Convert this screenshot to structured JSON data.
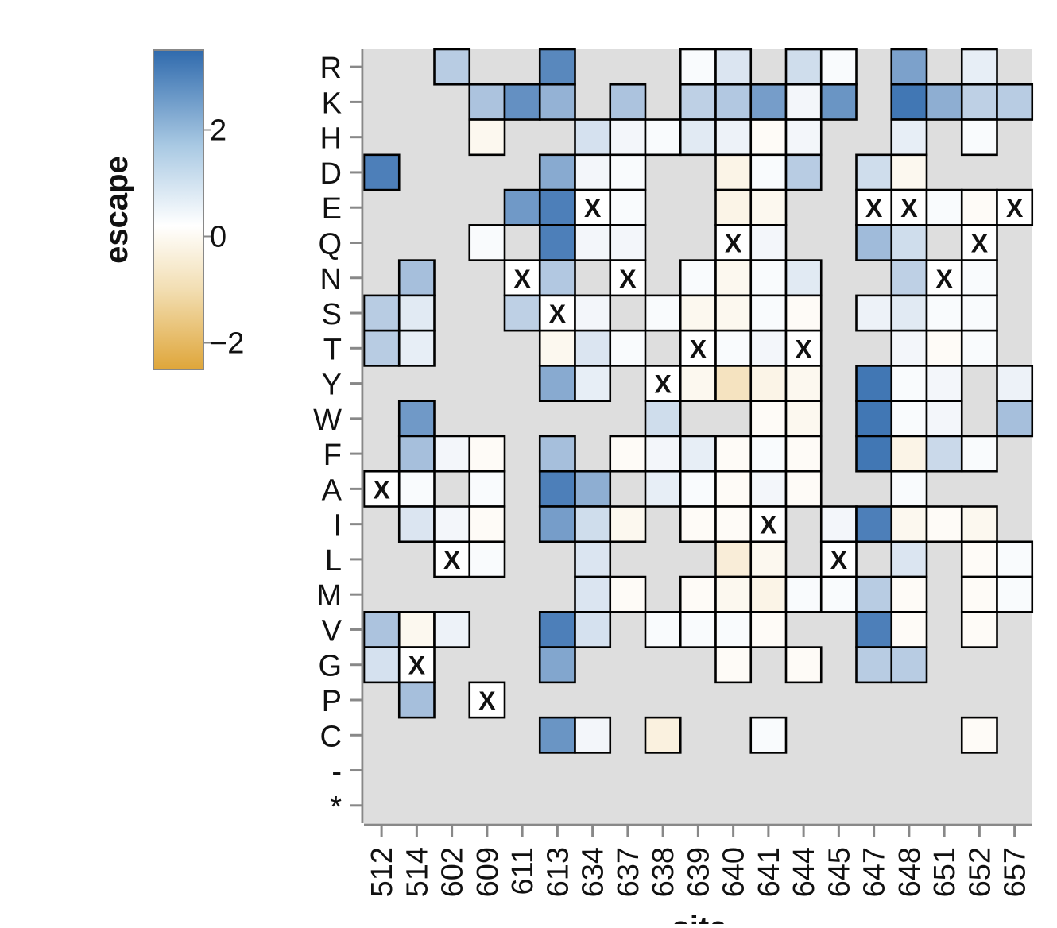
{
  "chart_data": {
    "type": "heatmap",
    "xlabel": "site",
    "ylabel": "",
    "x": [
      "512",
      "514",
      "602",
      "609",
      "611",
      "613",
      "634",
      "637",
      "638",
      "639",
      "640",
      "641",
      "644",
      "645",
      "647",
      "648",
      "651",
      "652",
      "657"
    ],
    "y": [
      "R",
      "K",
      "H",
      "D",
      "E",
      "Q",
      "N",
      "S",
      "T",
      "Y",
      "W",
      "F",
      "A",
      "I",
      "L",
      "M",
      "V",
      "G",
      "P",
      "C",
      "-",
      "*"
    ],
    "legend": {
      "title": "escape",
      "ticks": [
        2,
        0,
        -2
      ],
      "tick_labels": [
        "2",
        "0",
        "−2"
      ],
      "range": [
        -2.5,
        3.5
      ],
      "colors": {
        "low": "#dfa63a",
        "mid": "#ffffff",
        "high": "#2f6aad"
      },
      "placement": "left"
    },
    "background_color": "#dedede",
    "wildtype_marker": "X",
    "cells": [
      [
        "602",
        "R",
        1.2
      ],
      [
        "613",
        "R",
        2.8
      ],
      [
        "639",
        "R",
        0.1
      ],
      [
        "640",
        "R",
        0.6
      ],
      [
        "644",
        "R",
        0.8
      ],
      [
        "645",
        "R",
        0.1
      ],
      [
        "648",
        "R",
        2.2
      ],
      [
        "652",
        "R",
        0.4
      ],
      [
        "609",
        "K",
        1.4
      ],
      [
        "611",
        "K",
        2.6
      ],
      [
        "613",
        "K",
        1.8
      ],
      [
        "637",
        "K",
        1.4
      ],
      [
        "639",
        "K",
        1.1
      ],
      [
        "640",
        "K",
        1.3
      ],
      [
        "641",
        "K",
        2.3
      ],
      [
        "644",
        "K",
        0.2
      ],
      [
        "645",
        "K",
        2.5
      ],
      [
        "648",
        "K",
        3.2
      ],
      [
        "651",
        "K",
        1.9
      ],
      [
        "652",
        "K",
        1.1
      ],
      [
        "657",
        "K",
        1.2
      ],
      [
        "609",
        "H",
        -0.2
      ],
      [
        "634",
        "H",
        0.7
      ],
      [
        "637",
        "H",
        0.2
      ],
      [
        "638",
        "H",
        0.1
      ],
      [
        "639",
        "H",
        0.5
      ],
      [
        "640",
        "H",
        0.3
      ],
      [
        "641",
        "H",
        -0.1
      ],
      [
        "644",
        "H",
        0.2
      ],
      [
        "648",
        "H",
        0.4
      ],
      [
        "652",
        "H",
        0.1
      ],
      [
        "512",
        "D",
        3.0
      ],
      [
        "613",
        "D",
        2.0
      ],
      [
        "634",
        "D",
        0.2
      ],
      [
        "637",
        "D",
        0.1
      ],
      [
        "640",
        "D",
        -0.3
      ],
      [
        "641",
        "D",
        0.1
      ],
      [
        "644",
        "D",
        1.2
      ],
      [
        "647",
        "D",
        0.8
      ],
      [
        "648",
        "D",
        -0.2
      ],
      [
        "611",
        "E",
        2.4
      ],
      [
        "613",
        "E",
        3.0
      ],
      [
        "634",
        "E",
        0,
        "wt"
      ],
      [
        "637",
        "E",
        0.1
      ],
      [
        "640",
        "E",
        -0.3
      ],
      [
        "641",
        "E",
        -0.2
      ],
      [
        "647",
        "E",
        0,
        "wt"
      ],
      [
        "648",
        "E",
        0,
        "wt"
      ],
      [
        "651",
        "E",
        0.1
      ],
      [
        "652",
        "E",
        -0.1
      ],
      [
        "657",
        "E",
        0,
        "wt"
      ],
      [
        "609",
        "Q",
        0.1
      ],
      [
        "613",
        "Q",
        3.0
      ],
      [
        "634",
        "Q",
        0.2
      ],
      [
        "637",
        "Q",
        0.2
      ],
      [
        "640",
        "Q",
        0,
        "wt"
      ],
      [
        "641",
        "Q",
        0.2
      ],
      [
        "647",
        "Q",
        1.6
      ],
      [
        "648",
        "Q",
        0.8
      ],
      [
        "652",
        "Q",
        0,
        "wt"
      ],
      [
        "514",
        "N",
        1.5
      ],
      [
        "611",
        "N",
        0,
        "wt"
      ],
      [
        "613",
        "N",
        1.3
      ],
      [
        "637",
        "N",
        0,
        "wt"
      ],
      [
        "639",
        "N",
        0.1
      ],
      [
        "640",
        "N",
        -0.2
      ],
      [
        "641",
        "N",
        0.1
      ],
      [
        "644",
        "N",
        0.5
      ],
      [
        "648",
        "N",
        1.1
      ],
      [
        "651",
        "N",
        0,
        "wt"
      ],
      [
        "652",
        "N",
        0.1
      ],
      [
        "512",
        "S",
        1.2
      ],
      [
        "514",
        "S",
        0.5
      ],
      [
        "611",
        "S",
        1.1
      ],
      [
        "613",
        "S",
        0,
        "wt"
      ],
      [
        "634",
        "S",
        0.2
      ],
      [
        "638",
        "S",
        0.1
      ],
      [
        "639",
        "S",
        -0.2
      ],
      [
        "640",
        "S",
        -0.2
      ],
      [
        "641",
        "S",
        0.1
      ],
      [
        "644",
        "S",
        -0.1
      ],
      [
        "647",
        "S",
        0.3
      ],
      [
        "648",
        "S",
        0.5
      ],
      [
        "651",
        "S",
        0.1
      ],
      [
        "652",
        "S",
        0.1
      ],
      [
        "512",
        "T",
        1.2
      ],
      [
        "514",
        "T",
        0.4
      ],
      [
        "613",
        "T",
        -0.2
      ],
      [
        "634",
        "T",
        0.6
      ],
      [
        "637",
        "T",
        0.1
      ],
      [
        "639",
        "T",
        0,
        "wt"
      ],
      [
        "640",
        "T",
        0.1
      ],
      [
        "641",
        "T",
        0.2
      ],
      [
        "644",
        "T",
        0,
        "wt"
      ],
      [
        "648",
        "T",
        0.2
      ],
      [
        "651",
        "T",
        -0.1
      ],
      [
        "652",
        "T",
        0.1
      ],
      [
        "613",
        "Y",
        2.0
      ],
      [
        "634",
        "Y",
        0.4
      ],
      [
        "638",
        "Y",
        0,
        "wt"
      ],
      [
        "639",
        "Y",
        -0.2
      ],
      [
        "640",
        "Y",
        -0.8
      ],
      [
        "641",
        "Y",
        -0.3
      ],
      [
        "644",
        "Y",
        -0.2
      ],
      [
        "647",
        "Y",
        3.2
      ],
      [
        "648",
        "Y",
        0.1
      ],
      [
        "651",
        "Y",
        0.2
      ],
      [
        "657",
        "Y",
        0.3
      ],
      [
        "514",
        "W",
        2.4
      ],
      [
        "638",
        "W",
        0.8
      ],
      [
        "641",
        "W",
        -0.1
      ],
      [
        "644",
        "W",
        -0.2
      ],
      [
        "647",
        "W",
        3.2
      ],
      [
        "648",
        "W",
        0.1
      ],
      [
        "651",
        "W",
        0.2
      ],
      [
        "657",
        "W",
        1.5
      ],
      [
        "514",
        "F",
        1.5
      ],
      [
        "602",
        "F",
        0.2
      ],
      [
        "609",
        "F",
        -0.1
      ],
      [
        "613",
        "F",
        1.5
      ],
      [
        "637",
        "F",
        -0.1
      ],
      [
        "638",
        "F",
        0.2
      ],
      [
        "639",
        "F",
        0.4
      ],
      [
        "640",
        "F",
        -0.1
      ],
      [
        "641",
        "F",
        0.1
      ],
      [
        "644",
        "F",
        -0.1
      ],
      [
        "647",
        "F",
        3.2
      ],
      [
        "648",
        "F",
        -0.3
      ],
      [
        "651",
        "F",
        0.9
      ],
      [
        "652",
        "F",
        0.1
      ],
      [
        "512",
        "A",
        0,
        "wt"
      ],
      [
        "514",
        "A",
        0.1
      ],
      [
        "609",
        "A",
        0.1
      ],
      [
        "613",
        "A",
        3.0
      ],
      [
        "634",
        "A",
        1.9
      ],
      [
        "638",
        "A",
        0.4
      ],
      [
        "639",
        "A",
        0.1
      ],
      [
        "640",
        "A",
        -0.1
      ],
      [
        "641",
        "A",
        0.2
      ],
      [
        "644",
        "A",
        -0.1
      ],
      [
        "648",
        "A",
        0.1
      ],
      [
        "514",
        "I",
        0.6
      ],
      [
        "602",
        "I",
        0.2
      ],
      [
        "609",
        "I",
        -0.1
      ],
      [
        "613",
        "I",
        2.3
      ],
      [
        "634",
        "I",
        0.8
      ],
      [
        "637",
        "I",
        -0.2
      ],
      [
        "639",
        "I",
        -0.1
      ],
      [
        "640",
        "I",
        -0.1
      ],
      [
        "641",
        "I",
        0,
        "wt"
      ],
      [
        "645",
        "I",
        0.2
      ],
      [
        "647",
        "I",
        3.0
      ],
      [
        "648",
        "I",
        -0.2
      ],
      [
        "651",
        "I",
        -0.1
      ],
      [
        "652",
        "I",
        -0.2
      ],
      [
        "602",
        "L",
        0,
        "wt"
      ],
      [
        "609",
        "L",
        0.1
      ],
      [
        "634",
        "L",
        0.6
      ],
      [
        "640",
        "L",
        -0.5
      ],
      [
        "641",
        "L",
        -0.2
      ],
      [
        "645",
        "L",
        0,
        "wt"
      ],
      [
        "648",
        "L",
        0.6
      ],
      [
        "652",
        "L",
        -0.1
      ],
      [
        "657",
        "L",
        0.1
      ],
      [
        "634",
        "M",
        0.6
      ],
      [
        "637",
        "M",
        -0.1
      ],
      [
        "639",
        "M",
        -0.1
      ],
      [
        "640",
        "M",
        -0.2
      ],
      [
        "641",
        "M",
        -0.3
      ],
      [
        "644",
        "M",
        0.1
      ],
      [
        "645",
        "M",
        0.1
      ],
      [
        "647",
        "M",
        1.2
      ],
      [
        "648",
        "M",
        -0.1
      ],
      [
        "652",
        "M",
        -0.1
      ],
      [
        "657",
        "M",
        0.1
      ],
      [
        "512",
        "V",
        1.4
      ],
      [
        "514",
        "V",
        -0.2
      ],
      [
        "602",
        "V",
        0.3
      ],
      [
        "613",
        "V",
        3.0
      ],
      [
        "634",
        "V",
        0.7
      ],
      [
        "638",
        "V",
        0.1
      ],
      [
        "639",
        "V",
        0.1
      ],
      [
        "640",
        "V",
        0.1
      ],
      [
        "641",
        "V",
        -0.1
      ],
      [
        "647",
        "V",
        3.0
      ],
      [
        "648",
        "V",
        -0.1
      ],
      [
        "652",
        "V",
        -0.1
      ],
      [
        "512",
        "G",
        0.7
      ],
      [
        "514",
        "G",
        0,
        "wt"
      ],
      [
        "613",
        "G",
        2.1
      ],
      [
        "640",
        "G",
        -0.1
      ],
      [
        "644",
        "G",
        -0.1
      ],
      [
        "647",
        "G",
        1.2
      ],
      [
        "648",
        "G",
        1.2
      ],
      [
        "514",
        "P",
        1.5
      ],
      [
        "609",
        "P",
        0,
        "wt"
      ],
      [
        "613",
        "C",
        2.5
      ],
      [
        "634",
        "C",
        0.2
      ],
      [
        "638",
        "C",
        -0.4
      ],
      [
        "641",
        "C",
        0.1
      ],
      [
        "652",
        "C",
        -0.1
      ]
    ]
  }
}
